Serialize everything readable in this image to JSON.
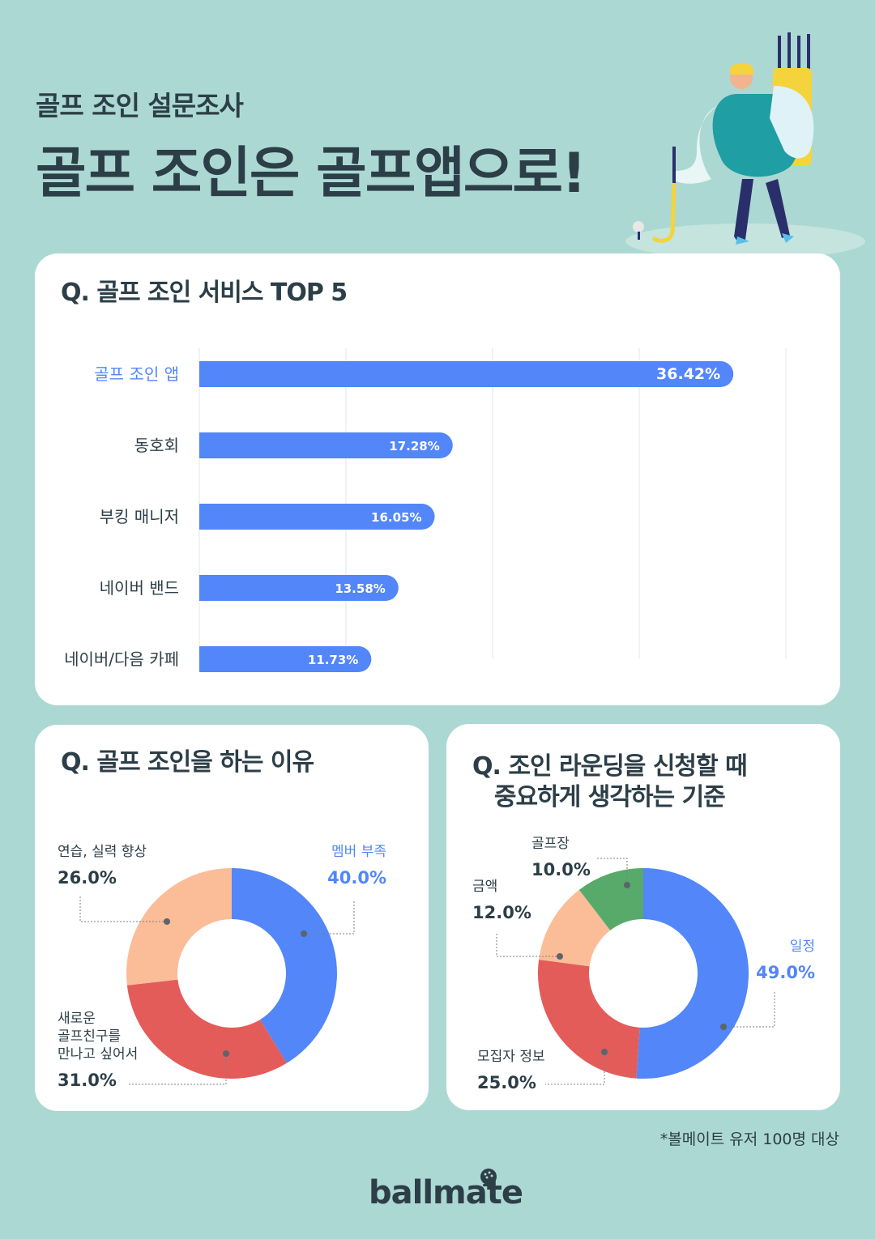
{
  "header": {
    "subtitle": "골프 조인 설문조사",
    "title": "골프 조인은 골프앱으로!"
  },
  "colors": {
    "background": "#acd8d3",
    "blue": "#5286f9",
    "red": "#e45c5a",
    "peach": "#fbbd97",
    "green": "#58aa6a",
    "dark": "#2c3e47"
  },
  "icons": [
    "golfer-illustration",
    "golf-ball-logo-icon"
  ],
  "chart_data": [
    {
      "type": "bar",
      "title": "Q. 골프 조인 서비스 TOP 5",
      "categories": [
        "골프 조인 앱",
        "동호회",
        "부킹 매니저",
        "네이버 밴드",
        "네이버/다음 카페"
      ],
      "values": [
        36.42,
        17.28,
        16.05,
        13.58,
        11.73
      ],
      "labels": [
        "36.42%",
        "17.28%",
        "16.05%",
        "13.58%",
        "11.73%"
      ],
      "xlim": [
        0,
        40
      ],
      "grid": true,
      "highlight_index": 0
    },
    {
      "type": "pie",
      "title": "Q. 골프 조인을 하는 이유",
      "slices": [
        {
          "label": "멤버 부족",
          "value": 40.0,
          "display": "40.0%",
          "color": "#5286f9"
        },
        {
          "label": "새로운\n골프친구를\n만나고 싶어서",
          "value": 31.0,
          "display": "31.0%",
          "color": "#e45c5a"
        },
        {
          "label": "연습, 실력 향상",
          "value": 26.0,
          "display": "26.0%",
          "color": "#fbbd97"
        }
      ]
    },
    {
      "type": "pie",
      "title": "Q. 조인 라운딩을 신청할 때\n중요하게 생각하는 기준",
      "slices": [
        {
          "label": "일정",
          "value": 49.0,
          "display": "49.0%",
          "color": "#5286f9"
        },
        {
          "label": "모집자 정보",
          "value": 25.0,
          "display": "25.0%",
          "color": "#e45c5a"
        },
        {
          "label": "금액",
          "value": 12.0,
          "display": "12.0%",
          "color": "#fbbd97"
        },
        {
          "label": "골프장",
          "value": 10.0,
          "display": "10.0%",
          "color": "#58aa6a"
        }
      ]
    }
  ],
  "footer": {
    "note": "*볼메이트 유저 100명 대상",
    "brand": "ballmate"
  }
}
